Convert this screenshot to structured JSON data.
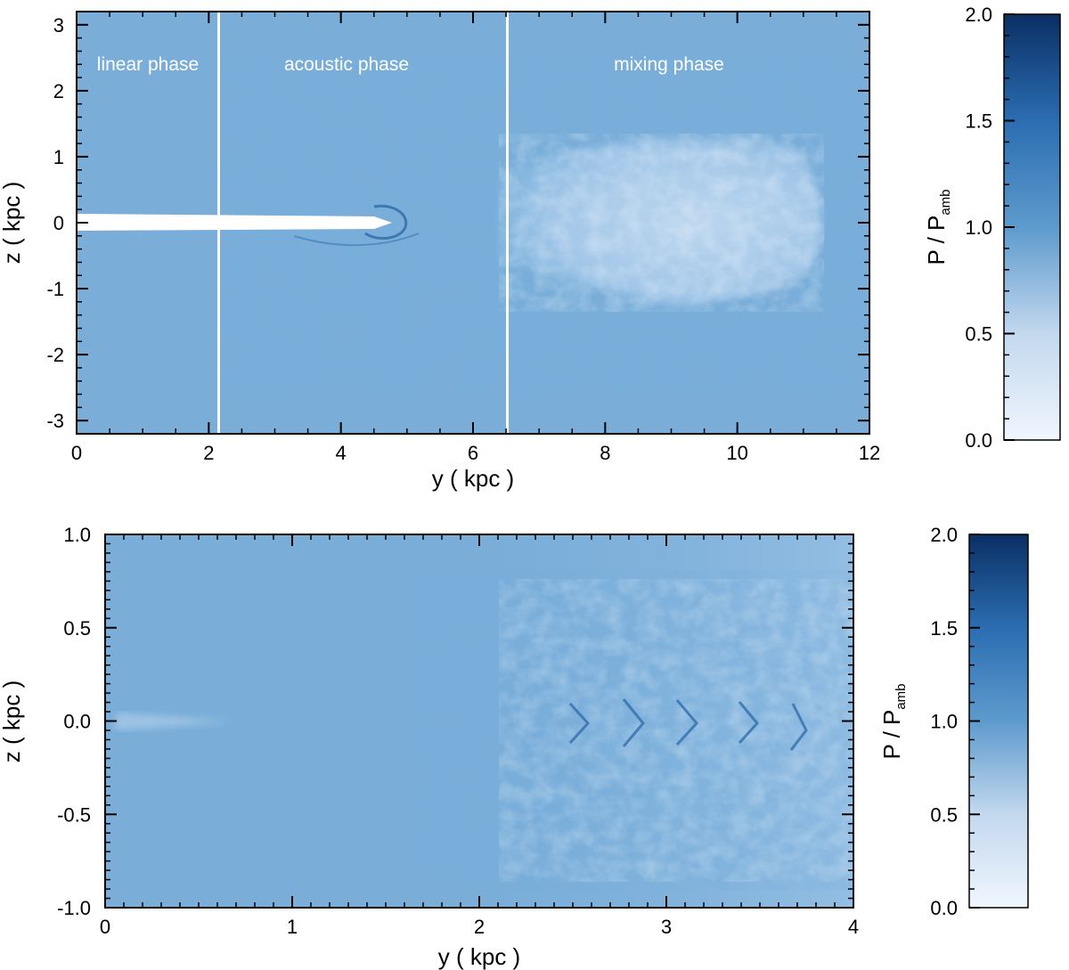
{
  "chart_data": [
    {
      "type": "heatmap",
      "xlabel": "y ( kpc )",
      "ylabel": "z ( kpc )",
      "xlim": [
        0,
        12
      ],
      "ylim": [
        -3.2,
        3.2
      ],
      "x_ticks": [
        0,
        2,
        4,
        6,
        8,
        10,
        12
      ],
      "y_ticks": [
        -3,
        -2,
        -1,
        0,
        1,
        2,
        3
      ],
      "phase_boundaries": [
        2.15,
        6.5
      ],
      "phases": [
        "linear phase",
        "acoustic phase",
        "mixing phase"
      ],
      "colorbar": {
        "label_main": "P / P",
        "label_sub": "amb",
        "range": [
          0.0,
          2.0
        ],
        "ticks": [
          "0.0",
          "0.5",
          "1.0",
          "1.5",
          "2.0"
        ],
        "color_low": "#f0f6fe",
        "color_mid": "#5d9acd",
        "color_high": "#0a2f64"
      },
      "background_color": "#7aaed9"
    },
    {
      "type": "heatmap",
      "xlabel": "y ( kpc )",
      "ylabel": "z ( kpc )",
      "xlim": [
        0,
        4
      ],
      "ylim": [
        -1.0,
        1.0
      ],
      "x_ticks": [
        0,
        1,
        2,
        3,
        4
      ],
      "y_ticks": [
        "-1.0",
        "-0.5",
        "0.0",
        "0.5",
        "1.0"
      ],
      "colorbar": {
        "label_main": "P / P",
        "label_sub": "amb",
        "range": [
          0.0,
          2.0
        ],
        "ticks": [
          "0.0",
          "0.5",
          "1.0",
          "1.5",
          "2.0"
        ],
        "color_low": "#f0f6fe",
        "color_mid": "#5d9acd",
        "color_high": "#0a2f64"
      },
      "background_color": "#7aaed9"
    }
  ]
}
